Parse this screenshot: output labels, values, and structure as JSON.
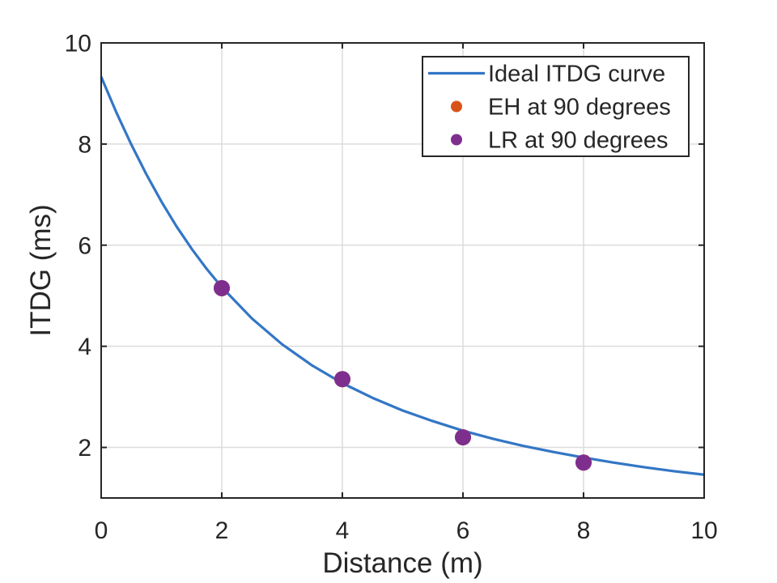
{
  "figure": {
    "background_color": "#ffffff",
    "axis_color": "#262626",
    "grid_color": "#dcdcdc",
    "legend_background": "#ffffff",
    "legend_border_color": "#262626"
  },
  "chart_data": {
    "type": "line",
    "title": "",
    "xlabel": "Distance (m)",
    "ylabel": "ITDG (ms)",
    "xlim": [
      0,
      10
    ],
    "ylim": [
      1,
      10
    ],
    "xticks": [
      0,
      2,
      4,
      6,
      8,
      10
    ],
    "yticks": [
      2,
      4,
      6,
      8,
      10
    ],
    "grid": true,
    "legend_position": "top-right-inside",
    "series": [
      {
        "name": "Ideal ITDG curve",
        "kind": "line",
        "color": "#3376c5",
        "line_width": 3.2,
        "x": [
          0,
          0.25,
          0.5,
          0.75,
          1,
          1.25,
          1.5,
          1.75,
          2,
          2.5,
          3,
          3.5,
          4,
          4.5,
          5,
          5.5,
          6,
          6.5,
          7,
          7.5,
          8,
          8.5,
          9,
          9.5,
          10
        ],
        "y": [
          9.33,
          8.63,
          7.99,
          7.4,
          6.86,
          6.37,
          5.93,
          5.53,
          5.17,
          4.55,
          4.04,
          3.62,
          3.27,
          2.98,
          2.73,
          2.52,
          2.33,
          2.17,
          2.03,
          1.91,
          1.8,
          1.7,
          1.61,
          1.53,
          1.46
        ]
      },
      {
        "name": "EH at 90 degrees",
        "kind": "scatter",
        "color": "#d95319",
        "marker": "filled-circle",
        "marker_radius": 10,
        "x": [
          2,
          4,
          6,
          8
        ],
        "y": [
          5.15,
          3.35,
          2.2,
          1.7
        ],
        "note": "markers coincide with LR points and are hidden beneath them"
      },
      {
        "name": "LR at 90 degrees",
        "kind": "scatter",
        "color": "#7e2f8e",
        "marker": "filled-circle",
        "marker_radius": 10,
        "x": [
          2,
          4,
          6,
          8
        ],
        "y": [
          5.15,
          3.35,
          2.2,
          1.7
        ]
      }
    ]
  }
}
